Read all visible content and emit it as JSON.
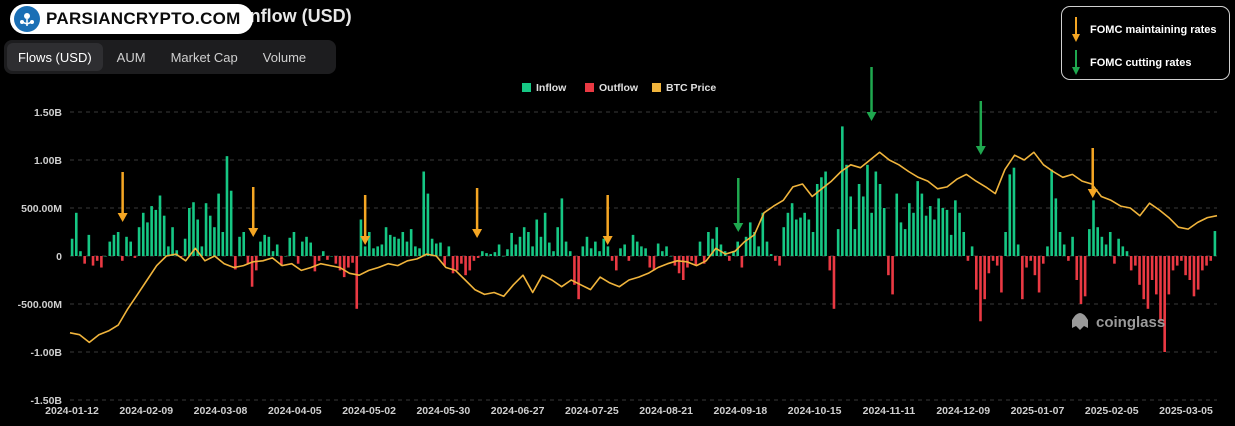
{
  "header": {
    "title": "Total Bitcoin Spot ETF Net Inflow (USD)",
    "watermark_badge": "PARSIANCRYPTO.COM"
  },
  "tabs": [
    {
      "label": "Flows (USD)",
      "active": true
    },
    {
      "label": "AUM",
      "active": false
    },
    {
      "label": "Market Cap",
      "active": false
    },
    {
      "label": "Volume",
      "active": false
    }
  ],
  "fomc_legend": {
    "maintaining": "FOMC maintaining rates",
    "cutting": "FOMC cutting rates"
  },
  "colors": {
    "inflow": "#16c784",
    "outflow": "#ea3943",
    "btc": "#f0b43c",
    "maintain_arrow": "#f5a623",
    "cut_arrow": "#1fa84f"
  },
  "brand": "coinglass",
  "chart_data": {
    "type": "bar",
    "legend": [
      "Inflow",
      "Outflow",
      "BTC Price"
    ],
    "ylim": [
      -1.5,
      1.5
    ],
    "yticks": [
      {
        "v": 1.5,
        "label": "1.50B"
      },
      {
        "v": 1.0,
        "label": "1.00B"
      },
      {
        "v": 0.5,
        "label": "500.00M"
      },
      {
        "v": 0,
        "label": "0"
      },
      {
        "v": -0.5,
        "label": "-500.00M"
      },
      {
        "v": -1.0,
        "label": "-1.00B"
      },
      {
        "v": -1.5,
        "label": "-1.50B"
      }
    ],
    "x_labels": [
      "2024-01-12",
      "2024-02-09",
      "2024-03-08",
      "2024-04-05",
      "2024-05-02",
      "2024-05-30",
      "2024-06-27",
      "2024-07-25",
      "2024-08-21",
      "2024-09-18",
      "2024-10-15",
      "2024-11-11",
      "2024-12-09",
      "2025-01-07",
      "2025-02-05",
      "2025-03-05"
    ],
    "flows_billion": [
      0.18,
      0.45,
      0.05,
      -0.08,
      0.22,
      -0.1,
      -0.05,
      -0.12,
      0.0,
      0.15,
      0.22,
      0.25,
      -0.05,
      0.2,
      0.15,
      -0.02,
      0.3,
      0.45,
      0.35,
      0.52,
      0.48,
      0.63,
      0.42,
      0.1,
      0.3,
      0.06,
      -0.01,
      0.18,
      0.5,
      0.56,
      0.38,
      0.1,
      0.55,
      0.42,
      0.3,
      0.65,
      0.25,
      1.04,
      0.68,
      -0.14,
      0.2,
      0.25,
      -0.08,
      -0.32,
      -0.15,
      0.15,
      0.22,
      0.2,
      0.05,
      0.12,
      -0.1,
      0.0,
      0.19,
      0.25,
      -0.08,
      0.15,
      0.2,
      0.14,
      -0.16,
      -0.05,
      0.05,
      -0.04,
      0.0,
      -0.08,
      -0.15,
      -0.22,
      -0.12,
      -0.07,
      -0.55,
      0.38,
      0.1,
      0.25,
      0.08,
      0.1,
      0.12,
      0.3,
      0.22,
      0.2,
      0.18,
      0.25,
      0.15,
      0.28,
      0.1,
      0.08,
      0.88,
      0.65,
      0.18,
      0.13,
      0.14,
      -0.1,
      0.1,
      -0.18,
      -0.15,
      -0.08,
      -0.2,
      -0.15,
      -0.05,
      -0.02,
      0.05,
      0.03,
      0.02,
      0.04,
      0.12,
      0.0,
      0.07,
      0.24,
      0.12,
      0.2,
      0.3,
      0.25,
      0.1,
      0.38,
      0.2,
      0.45,
      0.14,
      0.05,
      0.3,
      0.6,
      0.15,
      0.05,
      -0.3,
      -0.45,
      0.1,
      0.2,
      0.08,
      0.15,
      0.05,
      0.18,
      0.1,
      -0.05,
      -0.15,
      0.08,
      0.12,
      -0.05,
      0.22,
      0.15,
      0.1,
      0.08,
      -0.12,
      -0.15,
      0.13,
      0.05,
      0.1,
      0.0,
      -0.1,
      -0.18,
      -0.25,
      -0.12,
      -0.05,
      -0.1,
      0.15,
      -0.08,
      0.25,
      0.18,
      0.3,
      0.12,
      0.05,
      -0.05,
      0.05,
      0.15,
      -0.12,
      0.2,
      0.35,
      0.25,
      0.1,
      0.45,
      0.15,
      0.02,
      -0.05,
      -0.1,
      0.3,
      0.45,
      0.55,
      0.38,
      0.4,
      0.45,
      0.38,
      0.25,
      0.75,
      0.82,
      0.88,
      -0.15,
      -0.55,
      0.28,
      1.35,
      0.95,
      0.62,
      0.28,
      0.75,
      0.62,
      0.95,
      0.45,
      0.88,
      0.75,
      0.5,
      -0.2,
      -0.4,
      0.65,
      0.35,
      0.28,
      0.55,
      0.45,
      0.78,
      0.65,
      0.42,
      0.52,
      0.38,
      0.6,
      0.5,
      0.48,
      0.22,
      0.58,
      0.45,
      0.25,
      -0.05,
      0.1,
      -0.35,
      -0.68,
      -0.45,
      -0.18,
      -0.05,
      -0.1,
      -0.38,
      0.25,
      0.85,
      0.92,
      0.12,
      -0.45,
      -0.12,
      -0.05,
      -0.2,
      -0.38,
      -0.08,
      0.1,
      0.9,
      0.6,
      0.25,
      0.12,
      -0.05,
      0.2,
      -0.25,
      -0.5,
      -0.42,
      0.28,
      0.58,
      0.3,
      0.2,
      0.12,
      0.25,
      -0.08,
      0.18,
      0.1,
      0.05,
      -0.15,
      -0.1,
      -0.3,
      -0.45,
      -0.55,
      -0.25,
      -0.4,
      -0.68,
      -1.0,
      -0.4,
      -0.15,
      -0.1,
      -0.05,
      -0.2,
      -0.25,
      -0.42,
      -0.35,
      -0.15,
      -0.1,
      -0.05,
      0.26
    ],
    "btc_price_scaled": [
      -0.8,
      -0.82,
      -0.9,
      -0.82,
      -0.78,
      -0.72,
      -0.55,
      -0.4,
      -0.25,
      -0.1,
      0.0,
      0.02,
      -0.05,
      0.08,
      -0.05,
      0.0,
      -0.08,
      -0.12,
      -0.1,
      -0.06,
      -0.05,
      -0.02,
      -0.1,
      -0.08,
      -0.15,
      -0.12,
      -0.08,
      -0.1,
      -0.12,
      -0.18,
      -0.2,
      -0.15,
      -0.12,
      -0.08,
      -0.1,
      -0.05,
      -0.03,
      0.02,
      0.0,
      -0.12,
      -0.15,
      -0.25,
      -0.35,
      -0.4,
      -0.38,
      -0.42,
      -0.3,
      -0.2,
      -0.38,
      -0.2,
      -0.25,
      -0.32,
      -0.25,
      -0.3,
      -0.35,
      -0.22,
      -0.28,
      -0.32,
      -0.25,
      -0.22,
      -0.18,
      -0.12,
      -0.08,
      -0.05,
      -0.06,
      -0.1,
      -0.05,
      0.08,
      0.02,
      0.05,
      0.15,
      0.22,
      0.45,
      0.52,
      0.58,
      0.72,
      0.75,
      0.62,
      0.7,
      0.78,
      0.88,
      0.95,
      0.92,
      1.0,
      1.08,
      1.0,
      0.95,
      0.88,
      0.82,
      0.78,
      0.7,
      0.72,
      0.8,
      0.85,
      0.78,
      0.72,
      0.65,
      0.9,
      1.05,
      1.0,
      1.08,
      0.95,
      0.88,
      0.82,
      0.85,
      0.78,
      0.75,
      0.62,
      0.58,
      0.52,
      0.5,
      0.42,
      0.55,
      0.48,
      0.4,
      0.3,
      0.28,
      0.35,
      0.4,
      0.42
    ]
  },
  "fomc_arrows": [
    {
      "date": "2024-01-31",
      "type": "maintaining"
    },
    {
      "date": "2024-03-20",
      "type": "maintaining"
    },
    {
      "date": "2024-05-01",
      "type": "maintaining"
    },
    {
      "date": "2024-06-12",
      "type": "maintaining"
    },
    {
      "date": "2024-07-31",
      "type": "maintaining"
    },
    {
      "date": "2024-09-18",
      "type": "cutting"
    },
    {
      "date": "2024-11-07",
      "type": "cutting"
    },
    {
      "date": "2024-12-18",
      "type": "cutting"
    },
    {
      "date": "2025-01-29",
      "type": "maintaining"
    }
  ]
}
